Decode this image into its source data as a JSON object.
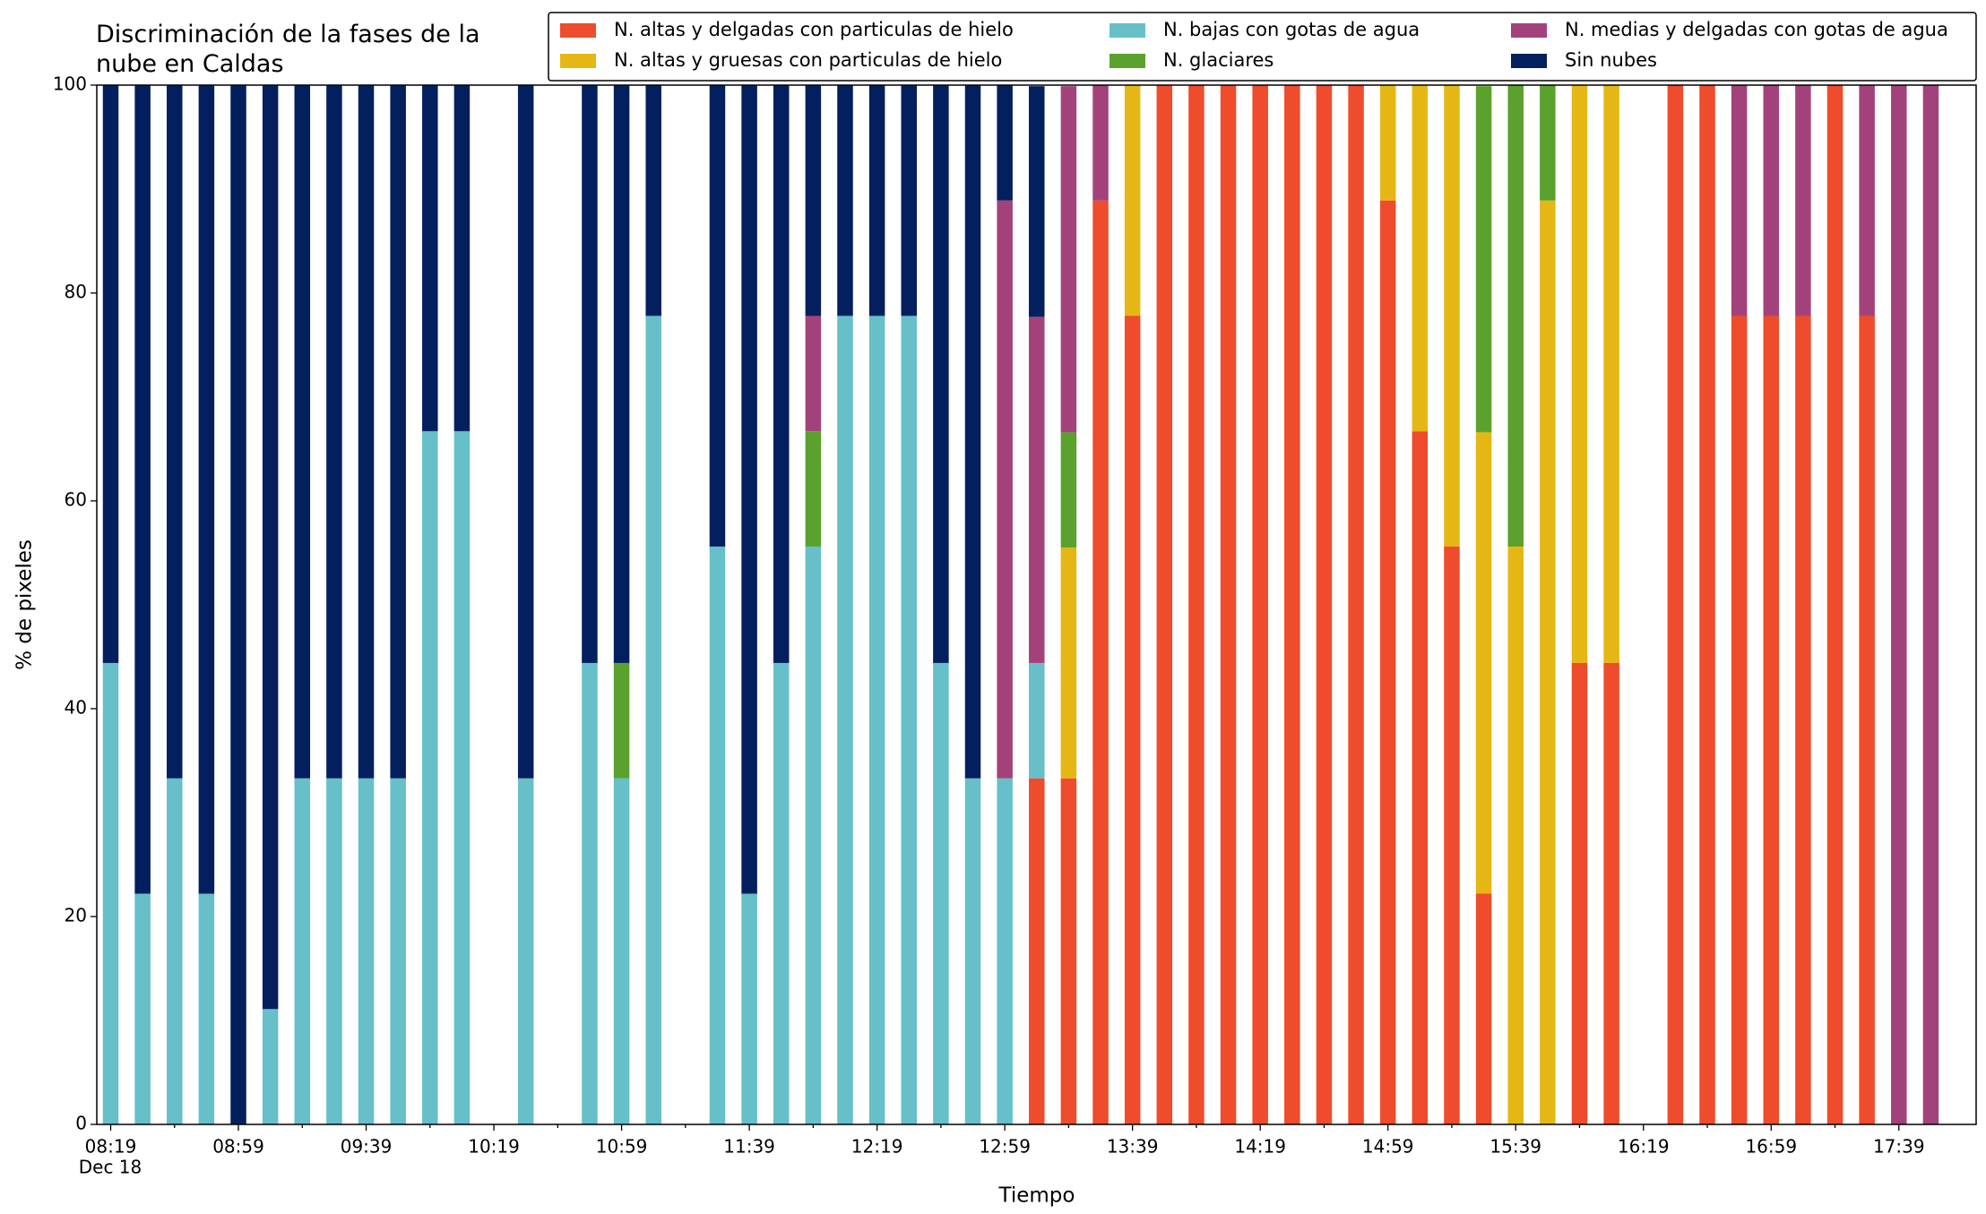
{
  "chart_data": {
    "type": "stacked_bar",
    "title": "Discriminación de la fases de la nube en Caldas",
    "xlabel": "Tiempo",
    "ylabel": "% de pixeles",
    "x_sublabel": "Dec 18",
    "categories": [
      "08:19",
      null,
      null,
      null,
      "08:59",
      null,
      null,
      null,
      "09:39",
      null,
      null,
      null,
      "10:19",
      null,
      null,
      null,
      "10:59",
      null,
      null,
      null,
      "11:39",
      null,
      null,
      null,
      "12:19",
      null,
      null,
      null,
      "12:59",
      null,
      null,
      null,
      "13:39",
      null,
      null,
      null,
      "14:19",
      null,
      null,
      null,
      "14:59",
      null,
      null,
      null,
      "15:39",
      null,
      null,
      null,
      "16:19",
      null,
      null,
      null,
      "16:59",
      null,
      null,
      null,
      "17:39",
      null
    ],
    "ylim": [
      0,
      100
    ],
    "yticks": [
      0,
      20,
      40,
      60,
      80,
      100
    ],
    "series": [
      {
        "name": "N. altas y delgadas con particulas de hielo",
        "color": "#ee4c2c",
        "values": [
          0,
          0,
          0,
          0,
          0,
          0,
          0,
          0,
          0,
          0,
          0,
          0,
          0,
          0,
          0,
          0,
          0,
          0,
          0,
          0,
          0,
          0,
          0,
          0,
          0,
          0,
          0,
          0,
          0,
          33.3,
          33.3,
          88.9,
          77.8,
          100,
          100,
          100,
          100,
          100,
          100,
          100,
          88.9,
          66.7,
          55.6,
          22.2,
          0,
          0,
          44.4,
          44.4,
          0,
          100,
          100,
          77.8,
          77.8,
          77.8,
          100,
          77.8,
          0,
          0
        ]
      },
      {
        "name": "N. altas y gruesas con particulas de hielo",
        "color": "#e5b714",
        "values": [
          0,
          0,
          0,
          0,
          0,
          0,
          0,
          0,
          0,
          0,
          0,
          0,
          0,
          0,
          0,
          0,
          0,
          0,
          0,
          0,
          0,
          0,
          0,
          0,
          0,
          0,
          0,
          0,
          0,
          0,
          22.2,
          0,
          22.2,
          0,
          0,
          0,
          0,
          0,
          0,
          0,
          11.1,
          33.3,
          44.4,
          44.4,
          55.6,
          88.9,
          55.6,
          55.6,
          0,
          0,
          0,
          0,
          0,
          0,
          0,
          0,
          0,
          0
        ]
      },
      {
        "name": "N. bajas con gotas de agua",
        "color": "#66bfc9",
        "values": [
          44.4,
          22.2,
          33.3,
          22.2,
          0,
          11.1,
          33.3,
          33.3,
          33.3,
          33.3,
          66.7,
          66.7,
          0,
          33.3,
          0,
          44.4,
          33.3,
          77.8,
          0,
          55.6,
          22.2,
          44.4,
          55.6,
          77.8,
          77.8,
          77.8,
          44.4,
          33.3,
          33.3,
          11.1,
          0,
          0,
          0,
          0,
          0,
          0,
          0,
          0,
          0,
          0,
          0,
          0,
          0,
          0,
          0,
          0,
          0,
          0,
          0,
          0,
          0,
          0,
          0,
          0,
          0,
          0,
          0,
          0
        ]
      },
      {
        "name": "N. glaciares",
        "color": "#5ba12e",
        "values": [
          0,
          0,
          0,
          0,
          0,
          0,
          0,
          0,
          0,
          0,
          0,
          0,
          0,
          0,
          0,
          0,
          11.1,
          0,
          0,
          0,
          0,
          0,
          11.1,
          0,
          0,
          0,
          0,
          0,
          0,
          0,
          11.1,
          0,
          0,
          0,
          0,
          0,
          0,
          0,
          0,
          0,
          0,
          0,
          0,
          33.3,
          44.4,
          11.1,
          0,
          0,
          0,
          0,
          0,
          0,
          0,
          0,
          0,
          0,
          0,
          0
        ]
      },
      {
        "name": "N. medias y delgadas con gotas de agua",
        "color": "#a3427a",
        "values": [
          0,
          0,
          0,
          0,
          0,
          0,
          0,
          0,
          0,
          0,
          0,
          0,
          0,
          0,
          0,
          0,
          0,
          0,
          0,
          0,
          0,
          0,
          11.1,
          0,
          0,
          0,
          0,
          0,
          55.6,
          33.3,
          33.3,
          11.1,
          0,
          0,
          0,
          0,
          0,
          0,
          0,
          0,
          0,
          0,
          0,
          0,
          0,
          0,
          0,
          0,
          0,
          0,
          0,
          22.2,
          22.2,
          22.2,
          0,
          22.2,
          100,
          100
        ]
      },
      {
        "name": "Sin nubes",
        "color": "#041f5e",
        "values": [
          55.6,
          77.8,
          66.7,
          77.8,
          100,
          88.9,
          66.7,
          66.7,
          66.7,
          66.7,
          33.3,
          33.3,
          0,
          66.7,
          0,
          55.6,
          55.6,
          22.2,
          0,
          44.4,
          77.8,
          55.6,
          22.2,
          22.2,
          22.2,
          22.2,
          55.6,
          66.7,
          11.1,
          22.2,
          0,
          0,
          0,
          0,
          0,
          0,
          0,
          0,
          0,
          0,
          0,
          0,
          0,
          0,
          0,
          0,
          0,
          0,
          0,
          0,
          0,
          0,
          0,
          0,
          0,
          0,
          0,
          0
        ]
      }
    ]
  }
}
